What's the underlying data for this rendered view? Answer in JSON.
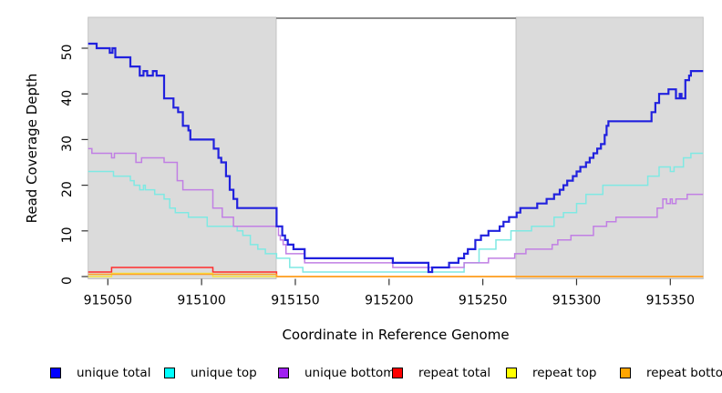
{
  "chart_data": {
    "type": "line",
    "step": true,
    "title": "",
    "xlabel": "Coordinate in Reference Genome",
    "ylabel": "Read Coverage Depth",
    "xlim": [
      915039.5,
      915367.5
    ],
    "ylim": [
      0,
      52
    ],
    "x_ticks": [
      915050,
      915100,
      915150,
      915200,
      915250,
      915300,
      915350
    ],
    "y_ticks": [
      0,
      10,
      20,
      30,
      40,
      50
    ],
    "grid": false,
    "legend_position": "bottom",
    "regions": {
      "shaded_color": "#dbdbdb",
      "shaded": [
        [
          915039.5,
          915139.8
        ],
        [
          915267.7,
          915367.5
        ]
      ],
      "unshaded_top_bar": [
        915139.8,
        915267.7
      ],
      "unshaded_top_bar_color": "#8c8c8c"
    },
    "series": [
      {
        "name": "repeat total",
        "swatch_color": "#FF0000",
        "line_color": "#FF2D2D",
        "line_width": 1.5,
        "points": [
          [
            915039.5,
            1
          ],
          [
            915052,
            2
          ],
          [
            915106,
            1
          ],
          [
            915140,
            0
          ]
        ]
      },
      {
        "name": "repeat top",
        "swatch_color": "#FFFF00",
        "line_color": "#F5E642",
        "line_width": 1.5,
        "points": [
          [
            915039.5,
            0
          ],
          [
            915052,
            1
          ],
          [
            915106,
            0
          ]
        ]
      },
      {
        "name": "repeat bottom",
        "swatch_color": "#FFA500",
        "line_color": "#FFA126",
        "line_width": 1.5,
        "points": [
          [
            915039.5,
            1
          ],
          [
            915140,
            0
          ]
        ]
      },
      {
        "name": "unique top",
        "swatch_color": "#00FFFF",
        "line_color": "#7FE9E3",
        "line_width": 1.5,
        "points": [
          [
            915039.5,
            23
          ],
          [
            915053,
            22
          ],
          [
            915062,
            21
          ],
          [
            915064,
            20
          ],
          [
            915067,
            19
          ],
          [
            915069,
            20
          ],
          [
            915070,
            19
          ],
          [
            915075,
            18
          ],
          [
            915080,
            17
          ],
          [
            915083,
            15
          ],
          [
            915086,
            14
          ],
          [
            915093,
            13
          ],
          [
            915103,
            11
          ],
          [
            915119,
            10
          ],
          [
            915122,
            9
          ],
          [
            915126,
            7
          ],
          [
            915130,
            6
          ],
          [
            915134,
            5
          ],
          [
            915140,
            4
          ],
          [
            915147,
            2
          ],
          [
            915154,
            1
          ],
          [
            915240,
            3
          ],
          [
            915248,
            6
          ],
          [
            915257,
            8
          ],
          [
            915265,
            10
          ],
          [
            915276,
            11
          ],
          [
            915288,
            13
          ],
          [
            915293,
            14
          ],
          [
            915300,
            16
          ],
          [
            915305,
            18
          ],
          [
            915314,
            20
          ],
          [
            915338,
            22
          ],
          [
            915344,
            24
          ],
          [
            915350,
            23
          ],
          [
            915352,
            24
          ],
          [
            915357,
            26
          ],
          [
            915361,
            27
          ]
        ]
      },
      {
        "name": "unique bottom",
        "swatch_color": "#A020F0",
        "line_color": "#C17FE4",
        "line_width": 1.5,
        "points": [
          [
            915039.5,
            28
          ],
          [
            915041.5,
            27
          ],
          [
            915052,
            26
          ],
          [
            915053.5,
            27
          ],
          [
            915065,
            25
          ],
          [
            915068,
            26
          ],
          [
            915080,
            25
          ],
          [
            915087,
            21
          ],
          [
            915090,
            19
          ],
          [
            915106,
            15
          ],
          [
            915111,
            13
          ],
          [
            915117,
            11
          ],
          [
            915141,
            9
          ],
          [
            915142,
            8
          ],
          [
            915143.5,
            7
          ],
          [
            915145,
            5
          ],
          [
            915155,
            3
          ],
          [
            915202,
            2
          ],
          [
            915240,
            3
          ],
          [
            915253,
            4
          ],
          [
            915267,
            5
          ],
          [
            915273,
            6
          ],
          [
            915287,
            7
          ],
          [
            915290,
            8
          ],
          [
            915297,
            9
          ],
          [
            915309,
            11
          ],
          [
            915316,
            12
          ],
          [
            915321,
            13
          ],
          [
            915343,
            15
          ],
          [
            915346,
            17
          ],
          [
            915348,
            16
          ],
          [
            915350,
            17
          ],
          [
            915351,
            16
          ],
          [
            915353,
            17
          ],
          [
            915359,
            18
          ]
        ]
      },
      {
        "name": "unique total",
        "swatch_color": "#0000FF",
        "line_color": "#2121DE",
        "line_width": 2.2,
        "points": [
          [
            915039.5,
            51
          ],
          [
            915044,
            50
          ],
          [
            915051,
            49
          ],
          [
            915052.5,
            50
          ],
          [
            915054,
            48
          ],
          [
            915062,
            46
          ],
          [
            915067,
            44
          ],
          [
            915069,
            45
          ],
          [
            915071,
            44
          ],
          [
            915074,
            45
          ],
          [
            915076,
            44
          ],
          [
            915080,
            39
          ],
          [
            915085,
            37
          ],
          [
            915087.5,
            36
          ],
          [
            915090,
            33
          ],
          [
            915093,
            32
          ],
          [
            915094,
            30
          ],
          [
            915106.5,
            28
          ],
          [
            915109,
            26
          ],
          [
            915110.5,
            25
          ],
          [
            915113,
            22
          ],
          [
            915115,
            19
          ],
          [
            915117,
            17
          ],
          [
            915119,
            15
          ],
          [
            915140,
            11
          ],
          [
            915143,
            9
          ],
          [
            915144.5,
            8
          ],
          [
            915146,
            7
          ],
          [
            915149,
            6
          ],
          [
            915155,
            4
          ],
          [
            915202,
            3
          ],
          [
            915221,
            1
          ],
          [
            915223,
            2
          ],
          [
            915232,
            3
          ],
          [
            915237,
            4
          ],
          [
            915240,
            5
          ],
          [
            915242,
            6
          ],
          [
            915246,
            8
          ],
          [
            915249,
            9
          ],
          [
            915253,
            10
          ],
          [
            915259,
            11
          ],
          [
            915261,
            12
          ],
          [
            915264,
            13
          ],
          [
            915268,
            14
          ],
          [
            915270,
            15
          ],
          [
            915279,
            16
          ],
          [
            915284,
            17
          ],
          [
            915288,
            18
          ],
          [
            915291,
            19
          ],
          [
            915293,
            20
          ],
          [
            915295,
            21
          ],
          [
            915298,
            22
          ],
          [
            915300,
            23
          ],
          [
            915302,
            24
          ],
          [
            915305,
            25
          ],
          [
            915307,
            26
          ],
          [
            915309,
            27
          ],
          [
            915311,
            28
          ],
          [
            915313,
            29
          ],
          [
            915315,
            31
          ],
          [
            915316,
            33
          ],
          [
            915317,
            34
          ],
          [
            915340,
            36
          ],
          [
            915342,
            38
          ],
          [
            915344,
            40
          ],
          [
            915349,
            41
          ],
          [
            915353,
            39
          ],
          [
            915355,
            40
          ],
          [
            915356,
            39
          ],
          [
            915358,
            43
          ],
          [
            915360,
            44
          ],
          [
            915361,
            45
          ]
        ]
      }
    ],
    "legend": [
      {
        "label": "unique total",
        "swatch_color": "#0000FF"
      },
      {
        "label": "unique top",
        "swatch_color": "#00FFFF"
      },
      {
        "label": "unique bottom",
        "swatch_color": "#A020F0"
      },
      {
        "label": "repeat total",
        "swatch_color": "#FF0000"
      },
      {
        "label": "repeat top",
        "swatch_color": "#FFFF00"
      },
      {
        "label": "repeat bottom",
        "swatch_color": "#FFA500"
      }
    ]
  }
}
